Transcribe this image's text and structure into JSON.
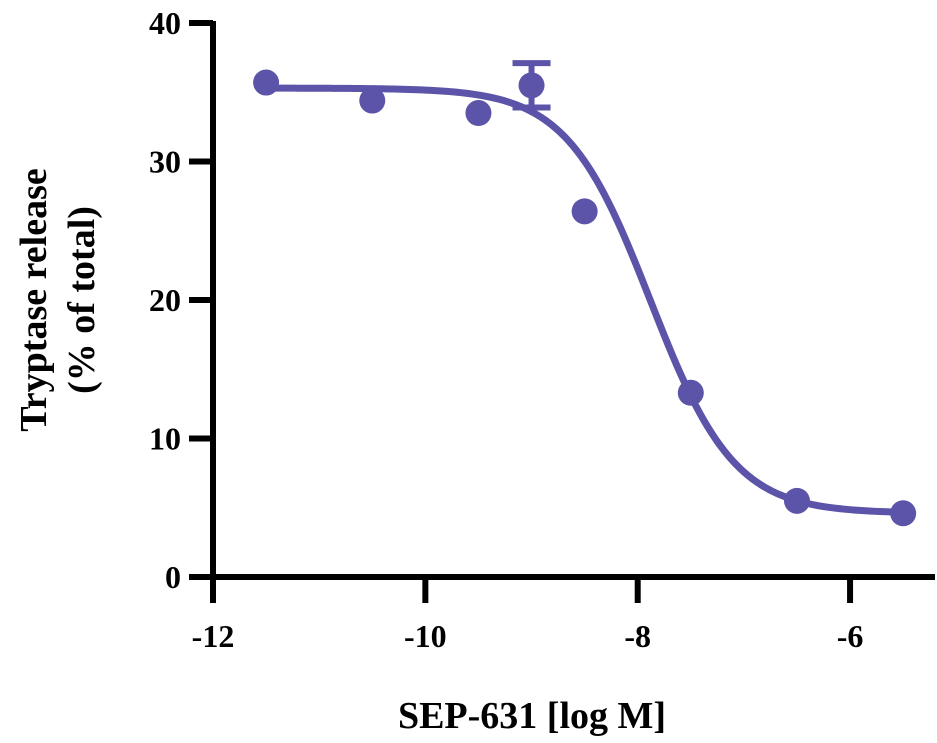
{
  "chart_data": {
    "type": "scatter",
    "title": "",
    "xlabel": "SEP-631 [log M]",
    "ylabel_line1": "Tryptase release",
    "ylabel_line2": "(% of total)",
    "xlim": [
      -12,
      -5.2
    ],
    "ylim": [
      0,
      40
    ],
    "x_ticks": [
      -12,
      -10,
      -8,
      -6
    ],
    "x_tick_labels": [
      "-12",
      "-10",
      "-8",
      "-6"
    ],
    "y_ticks": [
      0,
      10,
      20,
      30,
      40
    ],
    "y_tick_labels": [
      "0",
      "10",
      "20",
      "30",
      "40"
    ],
    "grid": false,
    "legend": "none",
    "color": "#5b54a8",
    "series": [
      {
        "name": "Tryptase release",
        "x": [
          -11.5,
          -10.5,
          -9.5,
          -9.0,
          -8.5,
          -7.5,
          -6.5,
          -5.5
        ],
        "y": [
          35.7,
          34.4,
          33.5,
          35.5,
          26.4,
          13.3,
          5.5,
          4.6
        ],
        "error": [
          0,
          0,
          0,
          1.6,
          0,
          0,
          0,
          0
        ]
      }
    ],
    "fit": {
      "model": "four-parameter logistic",
      "top": 35.3,
      "bottom": 4.6,
      "log_ic50": -7.88,
      "hill": 1.1
    }
  }
}
